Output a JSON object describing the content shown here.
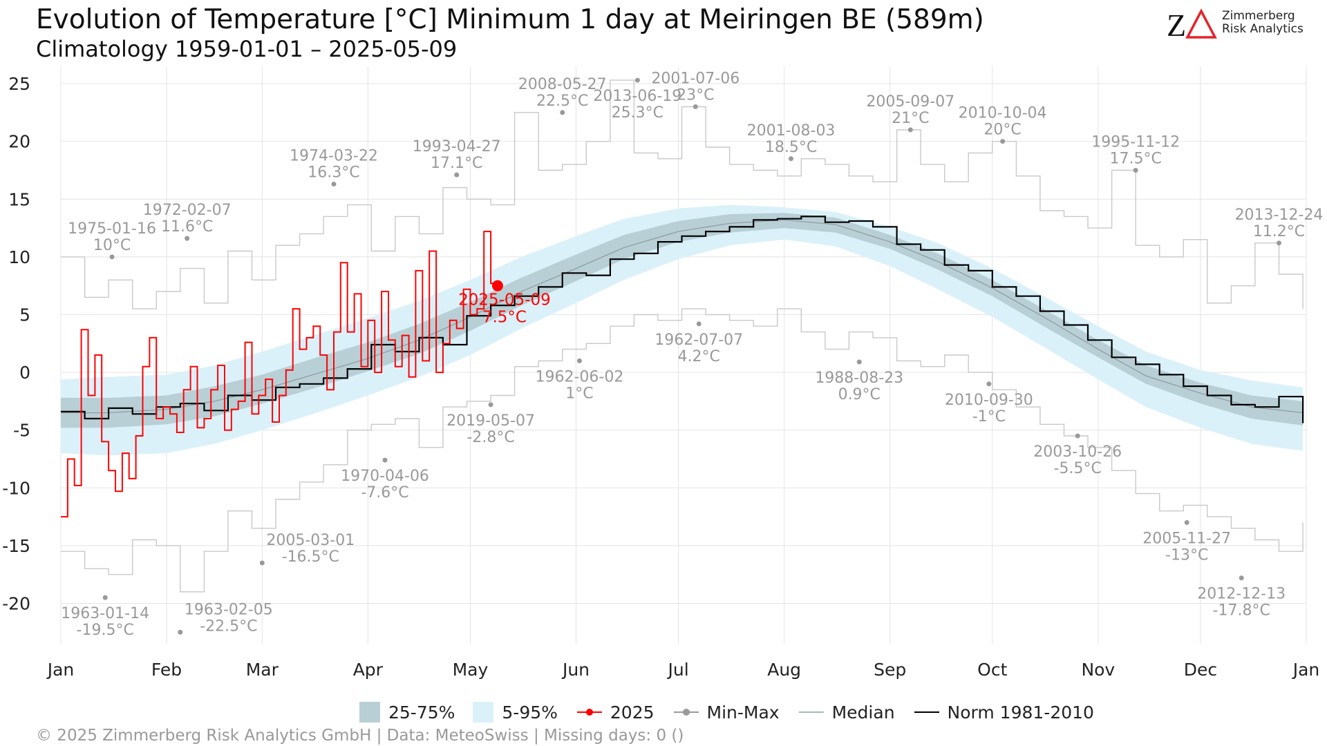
{
  "header": {
    "title": "Evolution of Temperature [°C] Minimum 1 day at Meiringen  BE (589m)",
    "subtitle": "Climatology 1959-01-01 – 2025-05-09"
  },
  "logo": {
    "line1": "Zimmerberg",
    "line2": "Risk Analytics",
    "accent_color": "#e3242b"
  },
  "legend": {
    "band_iqr": "25-75%",
    "band_90": "5-95%",
    "current": "2025",
    "minmax": "Min-Max",
    "median": "Median",
    "norm": "Norm 1981-2010"
  },
  "footer": "©  2025 Zimmerberg Risk Analytics GmbH | Data: MeteoSwiss | Missing days: 0 ()",
  "colors": {
    "iqr_band": "#b9cfd6",
    "p90_band": "#dbf1fa",
    "current": "#ff0000",
    "minmax": "#c8c8c8",
    "record_point": "#999999",
    "median": "#8e9ea3",
    "norm": "#000000",
    "annotation": "#999999",
    "grid": "#e4e4e4"
  },
  "chart_data": {
    "type": "line",
    "xlabel": "",
    "ylabel": "",
    "ylim": [
      -23.5,
      26.5
    ],
    "yticks": [
      25,
      20,
      15,
      10,
      5,
      0,
      -5,
      -10,
      -15,
      -20
    ],
    "xlim_days": [
      1,
      366
    ],
    "month_ticks": [
      {
        "label": "Jan",
        "day": 1
      },
      {
        "label": "Feb",
        "day": 32
      },
      {
        "label": "Mar",
        "day": 60
      },
      {
        "label": "Apr",
        "day": 91
      },
      {
        "label": "May",
        "day": 121
      },
      {
        "label": "Jun",
        "day": 152
      },
      {
        "label": "Jul",
        "day": 182
      },
      {
        "label": "Aug",
        "day": 213
      },
      {
        "label": "Sep",
        "day": 244
      },
      {
        "label": "Oct",
        "day": 274
      },
      {
        "label": "Nov",
        "day": 305
      },
      {
        "label": "Dec",
        "day": 335
      },
      {
        "label": "Jan",
        "day": 366
      }
    ],
    "grid": true,
    "legend_position": "bottom",
    "climatology": {
      "x_day": [
        1,
        15,
        32,
        46,
        60,
        75,
        91,
        106,
        121,
        136,
        152,
        166,
        182,
        197,
        213,
        228,
        244,
        258,
        274,
        289,
        305,
        319,
        335,
        350,
        365
      ],
      "median": [
        -3.5,
        -3.5,
        -3.2,
        -2.5,
        -1.5,
        -0.2,
        1.2,
        2.8,
        4.8,
        7.0,
        9.0,
        10.8,
        12.2,
        12.9,
        13.2,
        12.8,
        11.3,
        9.6,
        7.3,
        4.8,
        2.0,
        -0.3,
        -1.8,
        -3.0,
        -3.5
      ],
      "p25": [
        -4.8,
        -4.8,
        -4.5,
        -3.8,
        -2.7,
        -1.4,
        0.1,
        1.6,
        3.6,
        5.8,
        7.9,
        9.8,
        11.3,
        12.1,
        12.5,
        12.1,
        10.7,
        8.9,
        6.6,
        4.0,
        1.3,
        -1.0,
        -2.7,
        -4.0,
        -4.6
      ],
      "p75": [
        -2.2,
        -2.2,
        -2.0,
        -1.2,
        -0.2,
        1.2,
        2.6,
        4.2,
        6.1,
        8.2,
        10.2,
        11.9,
        13.1,
        13.7,
        13.8,
        13.4,
        11.9,
        10.3,
        8.0,
        5.5,
        2.8,
        0.6,
        -0.9,
        -2.0,
        -2.5
      ],
      "p05": [
        -7.0,
        -7.2,
        -7.0,
        -6.2,
        -5.0,
        -3.6,
        -2.0,
        -0.4,
        1.5,
        3.8,
        6.0,
        8.0,
        9.8,
        11.0,
        11.5,
        10.9,
        9.2,
        7.2,
        4.8,
        2.2,
        -0.6,
        -3.0,
        -4.8,
        -6.2,
        -6.8
      ],
      "p95": [
        -0.6,
        -0.4,
        -0.2,
        0.6,
        1.8,
        3.2,
        4.7,
        6.2,
        8.0,
        10.0,
        11.8,
        13.3,
        14.2,
        14.5,
        14.3,
        13.9,
        12.6,
        11.2,
        9.0,
        6.6,
        4.0,
        1.8,
        0.2,
        -0.7,
        -1.3
      ]
    },
    "norm_1981_2010": {
      "x_day": [
        1,
        8,
        15,
        22,
        29,
        36,
        43,
        50,
        57,
        64,
        71,
        78,
        85,
        92,
        99,
        106,
        113,
        120,
        127,
        134,
        141,
        148,
        155,
        162,
        169,
        176,
        183,
        190,
        197,
        204,
        211,
        218,
        225,
        232,
        239,
        246,
        253,
        260,
        267,
        274,
        281,
        288,
        295,
        302,
        309,
        316,
        323,
        330,
        337,
        344,
        351,
        358,
        365
      ],
      "values": [
        -3.4,
        -4.0,
        -3.1,
        -3.6,
        -3.0,
        -2.7,
        -3.3,
        -2.0,
        -2.4,
        -1.3,
        -1.0,
        -0.5,
        0.3,
        2.4,
        1.8,
        3.0,
        2.4,
        4.9,
        5.8,
        6.6,
        7.4,
        8.6,
        8.4,
        9.8,
        10.3,
        11.3,
        11.8,
        12.2,
        12.6,
        13.2,
        13.3,
        13.5,
        13.0,
        13.1,
        12.6,
        11.1,
        10.6,
        9.3,
        8.8,
        7.4,
        6.6,
        5.3,
        4.1,
        2.8,
        1.3,
        0.7,
        -0.2,
        -1.2,
        -2.0,
        -2.8,
        -3.0,
        -2.1,
        -4.4
      ]
    },
    "minmax": {
      "x_day": [
        1,
        8,
        15,
        22,
        29,
        36,
        43,
        50,
        57,
        64,
        71,
        78,
        85,
        92,
        99,
        106,
        113,
        120,
        127,
        134,
        141,
        148,
        155,
        162,
        169,
        176,
        183,
        190,
        197,
        204,
        211,
        218,
        225,
        232,
        239,
        246,
        253,
        260,
        267,
        274,
        281,
        288,
        295,
        302,
        309,
        316,
        323,
        330,
        337,
        344,
        351,
        358,
        365
      ],
      "max": [
        10.0,
        6.5,
        8.0,
        5.5,
        7.0,
        9.0,
        6.0,
        10.5,
        8.0,
        11.0,
        12.0,
        13.5,
        14.5,
        10.5,
        13.5,
        12.0,
        16.0,
        15.0,
        14.5,
        22.5,
        17.5,
        18.0,
        20.0,
        25.3,
        19.0,
        18.5,
        23.0,
        19.5,
        18.0,
        17.5,
        17.0,
        18.5,
        18.0,
        17.0,
        16.5,
        21.0,
        18.0,
        16.5,
        19.0,
        20.0,
        17.0,
        14.0,
        13.5,
        12.5,
        17.5,
        11.0,
        10.0,
        11.5,
        6.0,
        7.5,
        11.2,
        8.5,
        5.5
      ],
      "min": [
        -15.5,
        -17.0,
        -17.5,
        -14.5,
        -15.0,
        -19.0,
        -15.5,
        -12.0,
        -13.5,
        -11.0,
        -9.5,
        -8.0,
        -5.0,
        -4.5,
        -4.0,
        -6.5,
        -3.0,
        -2.5,
        -2.0,
        0.5,
        1.0,
        2.0,
        2.5,
        4.0,
        5.0,
        4.5,
        5.5,
        5.0,
        4.5,
        4.0,
        5.5,
        3.5,
        2.0,
        3.5,
        3.0,
        1.0,
        0.5,
        1.5,
        0.0,
        -1.5,
        -3.0,
        -4.5,
        -5.5,
        -6.5,
        -8.5,
        -10.5,
        -12.0,
        -11.5,
        -12.5,
        -13.5,
        -14.5,
        -15.5,
        -13.0
      ]
    },
    "current_2025": {
      "name": "2025",
      "x_day": [
        1,
        3,
        5,
        7,
        9,
        11,
        13,
        15,
        17,
        19,
        21,
        23,
        25,
        27,
        29,
        31,
        33,
        35,
        37,
        39,
        41,
        43,
        45,
        47,
        49,
        51,
        53,
        55,
        57,
        59,
        61,
        63,
        65,
        67,
        69,
        71,
        73,
        75,
        77,
        79,
        81,
        83,
        85,
        87,
        89,
        91,
        93,
        95,
        97,
        99,
        101,
        103,
        105,
        107,
        109,
        111,
        113,
        115,
        117,
        119,
        121,
        123,
        125,
        127,
        129
      ],
      "values": [
        -12.5,
        -7.5,
        -9.8,
        3.7,
        -2.0,
        1.5,
        -6.0,
        -8.5,
        -10.3,
        -7.0,
        -9.2,
        -5.5,
        0.5,
        3.0,
        -4.0,
        -3.0,
        -3.6,
        -5.2,
        -1.5,
        0.5,
        -4.8,
        -4.0,
        -1.5,
        0.6,
        -5.0,
        -3.2,
        -2.5,
        2.6,
        -3.6,
        -2.0,
        -0.6,
        -4.3,
        -2.0,
        0.2,
        5.5,
        2.0,
        3.0,
        4.0,
        1.5,
        -1.5,
        3.5,
        9.5,
        3.5,
        6.8,
        0.5,
        4.5,
        0.0,
        7.0,
        2.8,
        0.5,
        3.2,
        -0.4,
        8.8,
        1.0,
        10.5,
        0.0,
        2.5,
        4.5,
        3.8,
        7.2,
        5.0,
        5.5,
        12.2,
        7.7,
        7.5
      ],
      "last_label_date": "2025-05-09",
      "last_label_value": "7.5°C",
      "last_day": 129,
      "last_value": 7.5
    },
    "records": [
      {
        "date": "1975-01-16",
        "label": "10°C",
        "day": 16,
        "value": 10.0,
        "place": "above"
      },
      {
        "date": "1972-02-07",
        "label": "11.6°C",
        "day": 38,
        "value": 11.6,
        "place": "above"
      },
      {
        "date": "1974-03-22",
        "label": "16.3°C",
        "day": 81,
        "value": 16.3,
        "place": "above"
      },
      {
        "date": "1993-04-27",
        "label": "17.1°C",
        "day": 117,
        "value": 17.1,
        "place": "above"
      },
      {
        "date": "2008-05-27",
        "label": "22.5°C",
        "day": 148,
        "value": 22.5,
        "place": "above"
      },
      {
        "date": "2013-06-19",
        "label": "25.3°C",
        "day": 170,
        "value": 25.3,
        "place": "below"
      },
      {
        "date": "2001-07-06",
        "label": "23°C",
        "day": 187,
        "value": 23.0,
        "place": "above"
      },
      {
        "date": "2001-08-03",
        "label": "18.5°C",
        "day": 215,
        "value": 18.5,
        "place": "above"
      },
      {
        "date": "2005-09-07",
        "label": "21°C",
        "day": 250,
        "value": 21.0,
        "place": "above"
      },
      {
        "date": "2010-10-04",
        "label": "20°C",
        "day": 277,
        "value": 20.0,
        "place": "above"
      },
      {
        "date": "1995-11-12",
        "label": "17.5°C",
        "day": 316,
        "value": 17.5,
        "place": "above"
      },
      {
        "date": "2013-12-24",
        "label": "11.2°C",
        "day": 358,
        "value": 11.2,
        "place": "above"
      },
      {
        "date": "1963-01-14",
        "label": "-19.5°C",
        "day": 14,
        "value": -19.5,
        "place": "below"
      },
      {
        "date": "1963-02-05",
        "label": "-22.5°C",
        "day": 36,
        "value": -22.5,
        "place": "right"
      },
      {
        "date": "2005-03-01",
        "label": "-16.5°C",
        "day": 60,
        "value": -16.5,
        "place": "right"
      },
      {
        "date": "1970-04-06",
        "label": "-7.6°C",
        "day": 96,
        "value": -7.6,
        "place": "below"
      },
      {
        "date": "2019-05-07",
        "label": "-2.8°C",
        "day": 127,
        "value": -2.8,
        "place": "below"
      },
      {
        "date": "1962-06-02",
        "label": "1°C",
        "day": 153,
        "value": 1.0,
        "place": "below"
      },
      {
        "date": "1962-07-07",
        "label": "4.2°C",
        "day": 188,
        "value": 4.2,
        "place": "below"
      },
      {
        "date": "1988-08-23",
        "label": "0.9°C",
        "day": 235,
        "value": 0.9,
        "place": "below"
      },
      {
        "date": "2010-09-30",
        "label": "-1°C",
        "day": 273,
        "value": -1.0,
        "place": "below"
      },
      {
        "date": "2003-10-26",
        "label": "-5.5°C",
        "day": 299,
        "value": -5.5,
        "place": "below"
      },
      {
        "date": "2005-11-27",
        "label": "-13°C",
        "day": 331,
        "value": -13.0,
        "place": "below"
      },
      {
        "date": "2012-12-13",
        "label": "-17.8°C",
        "day": 347,
        "value": -17.8,
        "place": "below"
      }
    ]
  }
}
